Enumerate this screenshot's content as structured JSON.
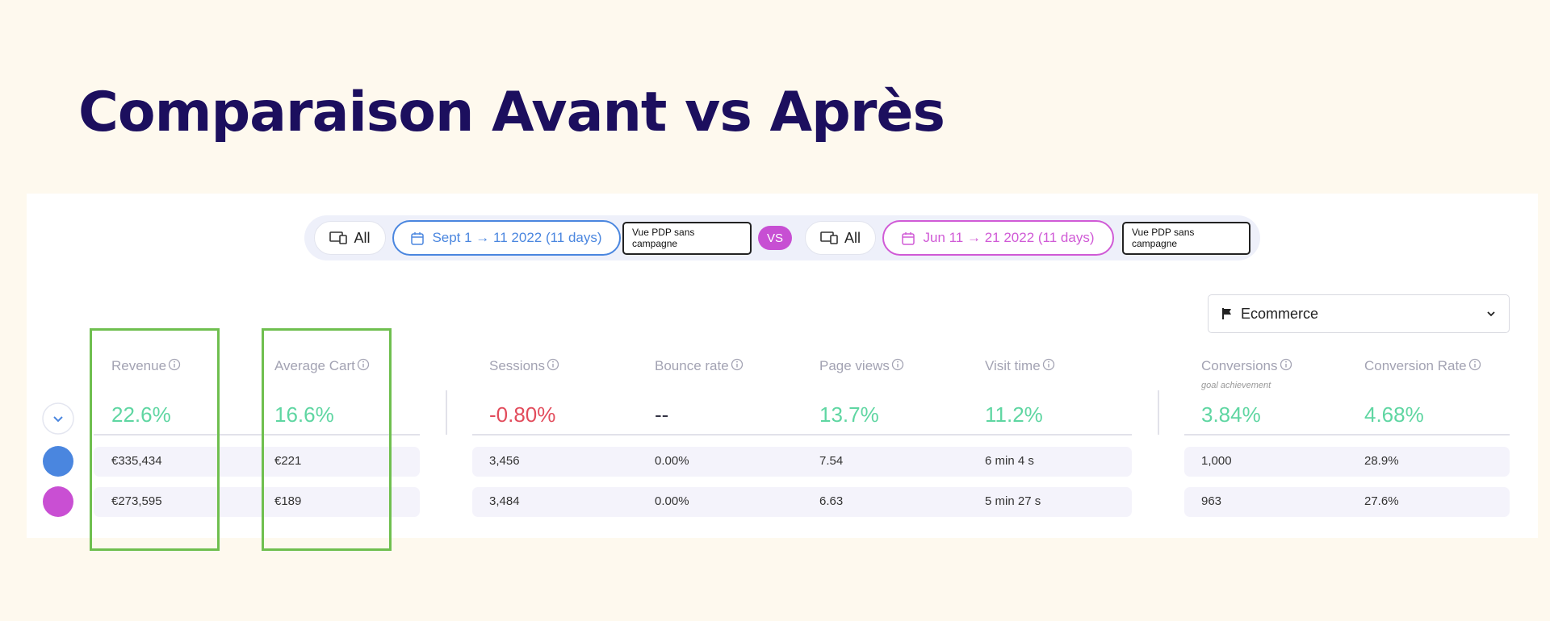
{
  "title": "Comparaison Avant vs Après",
  "toolbar": {
    "period_a": {
      "device": "All",
      "dates": "Sept 1 → 11 2022 (11 days)",
      "segment": "Vue PDP sans campagne"
    },
    "vs": "VS",
    "period_b": {
      "device": "All",
      "dates": "Jun 11 → 21 2022 (11 days)",
      "segment": "Vue PDP sans campagne"
    }
  },
  "filter": "Ecommerce",
  "metrics": [
    {
      "label": "Revenue",
      "change": "22.6%",
      "color": "#5fd6a2",
      "a": "€335,434",
      "b": "€273,595"
    },
    {
      "label": "Average Cart",
      "change": "16.6%",
      "color": "#5fd6a2",
      "a": "€221",
      "b": "€189"
    },
    {
      "label": "Sessions",
      "change": "-0.80%",
      "color": "#e24c5c",
      "a": "3,456",
      "b": "3,484"
    },
    {
      "label": "Bounce rate",
      "change": "--",
      "color": "#333344",
      "a": "0.00%",
      "b": "0.00%"
    },
    {
      "label": "Page views",
      "change": "13.7%",
      "color": "#5fd6a2",
      "a": "7.54",
      "b": "6.63"
    },
    {
      "label": "Visit time",
      "change": "11.2%",
      "color": "#5fd6a2",
      "a": "6 min 4 s",
      "b": "5 min 27 s"
    },
    {
      "label": "Conversions",
      "sublabel": "goal achievement",
      "change": "3.84%",
      "color": "#5fd6a2",
      "a": "1,000",
      "b": "963"
    },
    {
      "label": "Conversion Rate",
      "change": "4.68%",
      "color": "#5fd6a2",
      "a": "28.9%",
      "b": "27.6%"
    }
  ]
}
